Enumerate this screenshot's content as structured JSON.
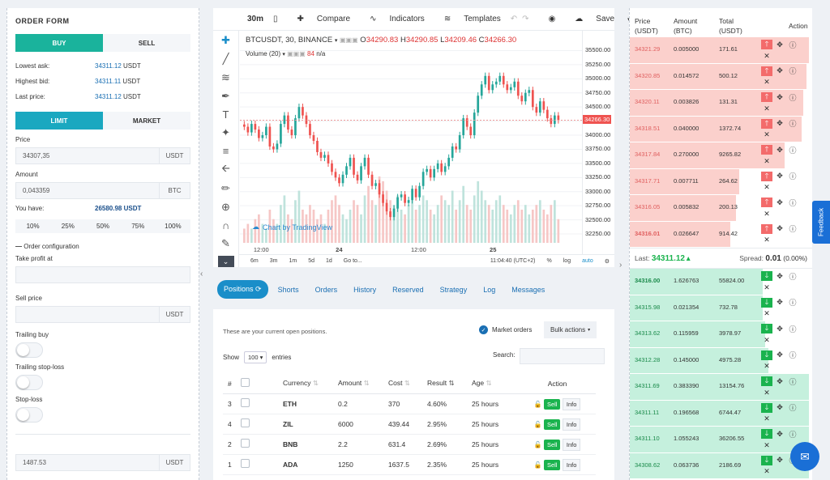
{
  "order_form": {
    "title": "ORDER FORM",
    "buy": "BUY",
    "sell": "SELL",
    "lowest_ask_label": "Lowest ask:",
    "lowest_ask": "34311.12",
    "highest_bid_label": "Highest bid:",
    "highest_bid": "34311.11",
    "last_price_label": "Last price:",
    "last_price": "34311.12",
    "currency": "USDT",
    "limit": "LIMIT",
    "market": "MARKET",
    "price_label": "Price",
    "price_value": "34307,35",
    "price_unit": "USDT",
    "amount_label": "Amount",
    "amount_value": "0,043359",
    "amount_unit": "BTC",
    "you_have_label": "You have:",
    "you_have_value": "26580.98 USDT",
    "percents": [
      "10%",
      "25%",
      "50%",
      "75%",
      "100%"
    ],
    "order_config": "Order configuration",
    "take_profit": "Take profit at",
    "sell_price": "Sell price",
    "sell_price_unit": "USDT",
    "trailing_buy": "Trailing buy",
    "trailing_stop": "Trailing stop-loss",
    "stop_loss": "Stop-loss",
    "bottom_value": "1487.53",
    "bottom_unit": "USDT"
  },
  "chart_toolbar": {
    "interval": "30m",
    "compare": "Compare",
    "indicators": "Indicators",
    "templates": "Templates",
    "save": "Save"
  },
  "chart": {
    "symbol": "BTCUSDT, 30, BINANCE",
    "o_label": "O",
    "o": "34290.83",
    "h_label": "H",
    "h": "34290.85",
    "l_label": "L",
    "l": "34209.46",
    "c_label": "C",
    "c": "34266.30",
    "volume": "Volume (20)",
    "volume_val": "84",
    "volume_na": "n/a",
    "current_price": "34266.30",
    "watermark": "Chart by TradingView",
    "x_labels": [
      "12:00",
      "24",
      "12:00",
      "25"
    ],
    "bottom_ranges": [
      "6m",
      "3m",
      "1m",
      "5d",
      "1d",
      "Go to..."
    ],
    "clock": "11:04:40 (UTC+2)",
    "pct": "%",
    "log": "log",
    "auto": "auto"
  },
  "chart_data": {
    "type": "candlestick",
    "y_ticks": [
      "35500.00",
      "35250.00",
      "35000.00",
      "34750.00",
      "34500.00",
      "34250.00",
      "34000.00",
      "33750.00",
      "33500.00",
      "33250.00",
      "33000.00",
      "32750.00",
      "32500.00",
      "32250.00"
    ],
    "ylim": [
      32150,
      35650
    ],
    "closes": [
      34150,
      34050,
      34200,
      34100,
      33950,
      34000,
      34150,
      33800,
      33750,
      33850,
      34200,
      34350,
      34100,
      34000,
      34300,
      34500,
      34350,
      34200,
      34000,
      33900,
      33700,
      33600,
      33650,
      33500,
      33350,
      33250,
      33150,
      33300,
      33450,
      33600,
      33300,
      33200,
      33450,
      33600,
      33300,
      33100,
      33150,
      32950,
      32800,
      32650,
      32550,
      32700,
      32900,
      32950,
      32800,
      32850,
      33050,
      32900,
      33100,
      33350,
      33400,
      33250,
      33400,
      33500,
      33350,
      33450,
      33600,
      33800,
      33750,
      34000,
      34300,
      34150,
      34000,
      34400,
      34700,
      34900,
      35050,
      34800,
      34900,
      34950,
      35050,
      34900,
      34800,
      34850,
      34950,
      34700,
      34600,
      34750,
      34800,
      34500,
      34400,
      34600,
      34450,
      34300,
      34200,
      34350,
      34266
    ],
    "volumes": [
      3,
      4,
      3,
      5,
      6,
      4,
      3,
      7,
      5,
      4,
      8,
      10,
      6,
      5,
      9,
      11,
      7,
      6,
      8,
      7,
      5,
      6,
      4,
      7,
      9,
      10,
      8,
      6,
      5,
      7,
      9,
      8,
      6,
      10,
      12,
      9,
      8,
      14,
      13,
      11,
      9,
      8,
      10,
      7,
      6,
      8,
      9,
      7,
      8,
      10,
      9,
      7,
      6,
      8,
      10,
      9,
      8,
      11,
      7,
      9,
      12,
      8,
      7,
      10,
      13,
      11,
      9,
      8,
      7,
      9,
      10,
      8,
      7,
      6,
      8,
      9,
      7,
      8,
      6,
      7,
      8,
      9,
      7,
      6,
      8,
      9,
      5
    ]
  },
  "tabs": [
    "Positions",
    "Shorts",
    "Orders",
    "History",
    "Reserved",
    "Strategy",
    "Log",
    "Messages"
  ],
  "positions": {
    "note": "These are your current open positions.",
    "market_orders": "Market orders",
    "bulk": "Bulk actions",
    "show": "Show",
    "show_val": "100",
    "entries": "entries",
    "search": "Search:",
    "headers": [
      "#",
      "",
      "Currency",
      "Amount",
      "Cost",
      "Result",
      "Age",
      "Action"
    ],
    "sell_label": "Sell",
    "info_label": "Info",
    "rows": [
      {
        "n": "3",
        "cur": "ETH",
        "amt": "0.2",
        "cost": "370",
        "res": "4.60%",
        "age": "25 hours"
      },
      {
        "n": "4",
        "cur": "ZIL",
        "amt": "6000",
        "cost": "439.44",
        "res": "2.95%",
        "age": "25 hours"
      },
      {
        "n": "2",
        "cur": "BNB",
        "amt": "2.2",
        "cost": "631.4",
        "res": "2.69%",
        "age": "25 hours"
      },
      {
        "n": "1",
        "cur": "ADA",
        "amt": "1250",
        "cost": "1637.5",
        "res": "2.35%",
        "age": "25 hours"
      }
    ]
  },
  "orderbook": {
    "h_price": "Price",
    "h_price2": "(USDT)",
    "h_amount": "Amount",
    "h_amount2": "(BTC)",
    "h_total": "Total",
    "h_total2": "(USDT)",
    "h_action": "Action",
    "asks": [
      {
        "p": "34321.29",
        "a": "0.005000",
        "t": "171.61",
        "fill": 0.98
      },
      {
        "p": "34320.85",
        "a": "0.014572",
        "t": "500.12",
        "fill": 0.97
      },
      {
        "p": "34320.11",
        "a": "0.003826",
        "t": "131.31",
        "fill": 0.95
      },
      {
        "p": "34318.51",
        "a": "0.040000",
        "t": "1372.74",
        "fill": 0.94
      },
      {
        "p": "34317.84",
        "a": "0.270000",
        "t": "9265.82",
        "fill": 0.85
      },
      {
        "p": "34317.71",
        "a": "0.007711",
        "t": "264.62",
        "fill": 0.6
      },
      {
        "p": "34316.05",
        "a": "0.005832",
        "t": "200.13",
        "fill": 0.58
      },
      {
        "p": "34316.01",
        "a": "0.026647",
        "t": "914.42",
        "fill": 0.55
      }
    ],
    "last_label": "Last:",
    "last_value": "34311.12",
    "spread_label": "Spread:",
    "spread_value": "0.01",
    "spread_pct": "(0.00%)",
    "bids": [
      {
        "p": "34316.00",
        "a": "1.626763",
        "t": "55824.00",
        "fill": 0.73
      },
      {
        "p": "34315.98",
        "a": "0.021354",
        "t": "732.78",
        "fill": 0.73
      },
      {
        "p": "34313.62",
        "a": "0.115959",
        "t": "3978.97",
        "fill": 0.74
      },
      {
        "p": "34312.28",
        "a": "0.145000",
        "t": "4975.28",
        "fill": 0.76
      },
      {
        "p": "34311.69",
        "a": "0.383390",
        "t": "13154.76",
        "fill": 0.98
      },
      {
        "p": "34311.11",
        "a": "0.196568",
        "t": "6744.47",
        "fill": 0.98
      },
      {
        "p": "34311.10",
        "a": "1.055243",
        "t": "36206.55",
        "fill": 0.98
      },
      {
        "p": "34308.62",
        "a": "0.063736",
        "t": "2186.69",
        "fill": 0.98
      }
    ]
  },
  "feedback": "Feedback",
  "colors": {
    "buy": "#1ab39c",
    "up": "#26a69a",
    "down": "#ef5350",
    "ask_bg": "#fbd0cc",
    "bid_bg": "#c5f0dd"
  }
}
